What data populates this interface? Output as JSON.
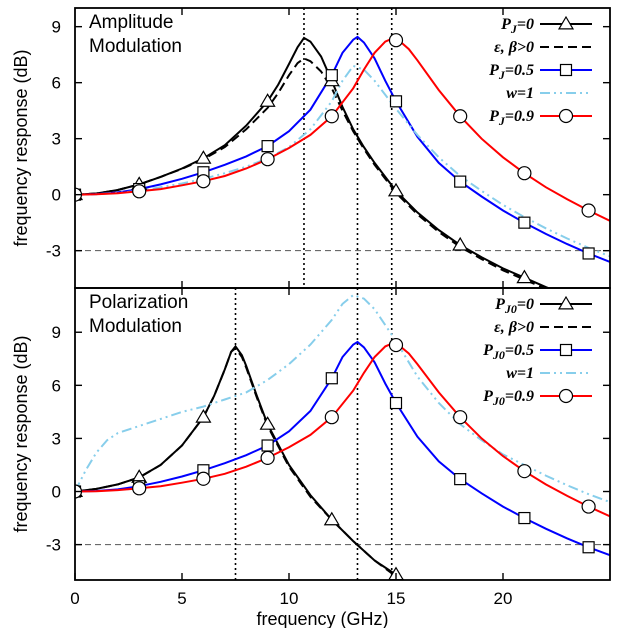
{
  "chart_data": [
    {
      "type": "line",
      "title_lines": [
        "Amplitude",
        "Modulation"
      ],
      "xlabel": "",
      "ylabel": "frequency response (dB)",
      "xlim": [
        0,
        25
      ],
      "ylim": [
        -5,
        10
      ],
      "yticks": [
        "-3",
        "0",
        "3",
        "6",
        "9"
      ],
      "xticks": [],
      "hline": -3,
      "vlines": [
        10.7,
        13.2,
        14.8
      ],
      "legend_position": "top-right",
      "legend": [
        {
          "label": "P_J=0",
          "sub": "J",
          "text": "P=0",
          "color": "#000000",
          "marker": "triangle",
          "dash": ""
        },
        {
          "label": "ε, β>0",
          "text": "ε, β>0",
          "color": "#000000",
          "marker": "",
          "dash": "9,5"
        },
        {
          "label": "P_J=0.5",
          "text": "P=0.5",
          "color": "#0000ff",
          "marker": "square",
          "dash": ""
        },
        {
          "label": "w=1",
          "text": "w=1",
          "color": "#87ceeb",
          "marker": "",
          "dash": "10,4,2,4,2,4"
        },
        {
          "label": "P_J=0.9",
          "text": "P=0.9",
          "color": "#ff0000",
          "marker": "circle",
          "dash": ""
        }
      ],
      "series": [
        {
          "name": "P_J=0",
          "color": "#000000",
          "marker": "triangle",
          "dash": "",
          "x": [
            0,
            1,
            2,
            3,
            4,
            5,
            6,
            7,
            8,
            9,
            9.5,
            10,
            10.4,
            10.7,
            11,
            11.5,
            12,
            12.5,
            13,
            13.5,
            14,
            15,
            16,
            17,
            18,
            19,
            20,
            21,
            22,
            23,
            24,
            25
          ],
          "y": [
            0,
            0.06,
            0.25,
            0.55,
            0.95,
            1.4,
            1.95,
            2.65,
            3.7,
            5.0,
            5.9,
            7.0,
            7.9,
            8.4,
            8.2,
            7.4,
            6.1,
            4.7,
            3.5,
            2.55,
            1.7,
            0.2,
            -0.95,
            -1.9,
            -2.7,
            -3.35,
            -3.95,
            -4.45,
            -4.95,
            -5.4,
            -5.8,
            -6.2
          ],
          "markers_x": [
            0,
            3,
            6,
            9,
            12,
            15,
            18,
            21
          ]
        },
        {
          "name": "ε, β>0",
          "color": "#000000",
          "marker": "",
          "dash": "9,5",
          "x": [
            0,
            1,
            2,
            3,
            4,
            5,
            6,
            7,
            8,
            9,
            9.5,
            10,
            10.4,
            10.7,
            11,
            11.5,
            12,
            12.5,
            13,
            13.5,
            14,
            15,
            16,
            17,
            18,
            19,
            20,
            21,
            22,
            23,
            24,
            25
          ],
          "y": [
            0,
            0.06,
            0.25,
            0.55,
            0.95,
            1.38,
            1.9,
            2.55,
            3.5,
            4.65,
            5.45,
            6.4,
            7.05,
            7.3,
            7.15,
            6.6,
            5.7,
            4.5,
            3.4,
            2.45,
            1.6,
            0.1,
            -1.05,
            -2.0,
            -2.8,
            -3.45,
            -4.05,
            -4.55,
            -5.05,
            -5.5,
            -5.9,
            -6.3
          ]
        },
        {
          "name": "P_J=0.5",
          "color": "#0000ff",
          "marker": "square",
          "dash": "",
          "x": [
            0,
            1,
            2,
            3,
            4,
            5,
            6,
            7,
            8,
            9,
            10,
            11,
            12,
            12.5,
            13,
            13.2,
            13.5,
            14,
            14.5,
            15,
            16,
            17,
            18,
            19,
            20,
            21,
            22,
            23,
            24,
            25
          ],
          "y": [
            0,
            0.03,
            0.12,
            0.3,
            0.55,
            0.85,
            1.2,
            1.6,
            2.05,
            2.6,
            3.4,
            4.55,
            6.4,
            7.6,
            8.3,
            8.45,
            8.15,
            7.3,
            6.1,
            5.0,
            3.1,
            1.7,
            0.7,
            -0.1,
            -0.85,
            -1.5,
            -2.1,
            -2.65,
            -3.15,
            -3.6
          ],
          "markers_x": [
            0,
            3,
            6,
            9,
            12,
            15,
            18,
            21,
            24
          ]
        },
        {
          "name": "w=1",
          "color": "#87ceeb",
          "marker": "",
          "dash": "10,4,2,4,2,4",
          "x": [
            0,
            1,
            2,
            3,
            4,
            5,
            6,
            7,
            8,
            9,
            10,
            11,
            12,
            12.5,
            13,
            13.5,
            14,
            15,
            16,
            17,
            18,
            19,
            20,
            21,
            22,
            23,
            24,
            25
          ],
          "y": [
            0,
            0.02,
            0.1,
            0.2,
            0.4,
            0.6,
            0.85,
            1.15,
            1.5,
            1.95,
            2.55,
            3.5,
            5.0,
            6.1,
            6.9,
            6.7,
            6.1,
            4.6,
            3.2,
            2.0,
            1.0,
            0.2,
            -0.55,
            -1.2,
            -1.8,
            -2.35,
            -2.85,
            -3.3
          ]
        },
        {
          "name": "P_J=0.9",
          "color": "#ff0000",
          "marker": "circle",
          "dash": "",
          "x": [
            0,
            1,
            2,
            3,
            4,
            5,
            6,
            7,
            8,
            9,
            10,
            11,
            12,
            13,
            13.5,
            14,
            14.5,
            14.8,
            15.2,
            15.6,
            16,
            17,
            18,
            19,
            20,
            21,
            22,
            23,
            24,
            25
          ],
          "y": [
            0,
            0.02,
            0.08,
            0.18,
            0.3,
            0.5,
            0.72,
            1.0,
            1.4,
            1.9,
            2.5,
            3.2,
            4.2,
            5.7,
            6.7,
            7.6,
            8.2,
            8.35,
            8.2,
            7.8,
            7.2,
            5.6,
            4.2,
            3.0,
            2.0,
            1.15,
            0.4,
            -0.25,
            -0.85,
            -1.4
          ],
          "markers_x": [
            0,
            3,
            6,
            9,
            12,
            15,
            18,
            21,
            24
          ]
        }
      ]
    },
    {
      "type": "line",
      "title_lines": [
        "Polarization",
        "Modulation"
      ],
      "xlabel": "frequency (GHz)",
      "ylabel": "frequency response (dB)",
      "xlim": [
        0,
        25
      ],
      "ylim": [
        -5,
        11.5
      ],
      "yticks": [
        "-3",
        "0",
        "3",
        "6",
        "9"
      ],
      "xticks": [
        "0",
        "5",
        "10",
        "15",
        "20"
      ],
      "hline": -3,
      "vlines": [
        7.5,
        13.2,
        14.8
      ],
      "legend_position": "top-right",
      "legend": [
        {
          "label": "P_J0=0",
          "text": "P=0",
          "color": "#000000",
          "marker": "triangle",
          "dash": ""
        },
        {
          "label": "ε, β>0",
          "text": "ε, β>0",
          "color": "#000000",
          "marker": "",
          "dash": "9,5"
        },
        {
          "label": "P_J0=0.5",
          "text": "P=0.5",
          "color": "#0000ff",
          "marker": "square",
          "dash": ""
        },
        {
          "label": "w=1",
          "text": "w=1",
          "color": "#87ceeb",
          "marker": "",
          "dash": "10,4,2,4,2,4"
        },
        {
          "label": "P_J0=0.9",
          "text": "P=0.9",
          "color": "#ff0000",
          "marker": "circle",
          "dash": ""
        }
      ],
      "series": [
        {
          "name": "ε, β>0",
          "color": "#000000",
          "marker": "",
          "dash": "9,5",
          "x": [
            0,
            1,
            2,
            3,
            4,
            5,
            6,
            6.5,
            7,
            7.3,
            7.5,
            7.8,
            8,
            8.5,
            9,
            10,
            11,
            12,
            13,
            14,
            15,
            16
          ],
          "y": [
            0,
            0.15,
            0.4,
            0.8,
            1.5,
            2.6,
            4.2,
            5.4,
            6.9,
            7.9,
            8.1,
            7.6,
            7.0,
            5.3,
            3.7,
            1.4,
            -0.3,
            -1.6,
            -2.8,
            -3.9,
            -4.8,
            -5.7
          ]
        },
        {
          "name": "P_J0=0",
          "color": "#000000",
          "marker": "triangle",
          "dash": "",
          "x": [
            0,
            1,
            2,
            3,
            4,
            5,
            6,
            6.5,
            7,
            7.3,
            7.5,
            7.8,
            8,
            8.5,
            9,
            10,
            11,
            12,
            13,
            14,
            15,
            16
          ],
          "y": [
            0,
            0.15,
            0.4,
            0.8,
            1.5,
            2.6,
            4.2,
            5.4,
            6.9,
            7.9,
            8.2,
            7.7,
            7.1,
            5.4,
            3.8,
            1.5,
            -0.2,
            -1.6,
            -2.8,
            -3.9,
            -4.7,
            -5.6
          ],
          "markers_x": [
            0,
            3,
            6,
            9,
            12,
            15
          ]
        },
        {
          "name": "P_J0=0.5",
          "color": "#0000ff",
          "marker": "square",
          "dash": "",
          "x": [
            0,
            1,
            2,
            3,
            4,
            5,
            6,
            7,
            8,
            9,
            10,
            11,
            12,
            12.5,
            13,
            13.2,
            13.5,
            14,
            14.5,
            15,
            16,
            17,
            18,
            19,
            20,
            21,
            22,
            23,
            24,
            25
          ],
          "y": [
            0,
            0.03,
            0.12,
            0.3,
            0.55,
            0.85,
            1.2,
            1.6,
            2.05,
            2.6,
            3.4,
            4.55,
            6.4,
            7.6,
            8.3,
            8.45,
            8.15,
            7.3,
            6.1,
            5.0,
            3.1,
            1.7,
            0.7,
            -0.1,
            -0.85,
            -1.5,
            -2.1,
            -2.65,
            -3.15,
            -3.6
          ],
          "markers_x": [
            0,
            3,
            6,
            9,
            12,
            15,
            18,
            21,
            24
          ]
        },
        {
          "name": "w=1",
          "color": "#87ceeb",
          "marker": "",
          "dash": "10,4,2,4,2,4",
          "x": [
            0,
            0.5,
            1,
            1.5,
            2,
            3,
            4,
            5,
            6,
            7,
            8,
            9,
            10,
            11,
            12,
            12.5,
            13,
            13.5,
            14,
            15,
            16,
            17,
            18,
            19,
            20,
            21,
            22,
            23,
            24,
            25
          ],
          "y": [
            0,
            1.2,
            2.2,
            2.9,
            3.3,
            3.7,
            4.1,
            4.5,
            4.8,
            5.2,
            5.6,
            6.3,
            7.2,
            8.3,
            9.7,
            10.6,
            11.1,
            10.9,
            10.3,
            8.5,
            6.5,
            5.0,
            3.8,
            2.9,
            2.1,
            1.5,
            0.9,
            0.35,
            -0.15,
            -0.6
          ]
        },
        {
          "name": "P_J0=0.9",
          "color": "#ff0000",
          "marker": "circle",
          "dash": "",
          "x": [
            0,
            1,
            2,
            3,
            4,
            5,
            6,
            7,
            8,
            9,
            10,
            11,
            12,
            13,
            13.5,
            14,
            14.5,
            14.8,
            15.2,
            15.6,
            16,
            17,
            18,
            19,
            20,
            21,
            22,
            23,
            24,
            25
          ],
          "y": [
            0,
            0.02,
            0.08,
            0.18,
            0.3,
            0.5,
            0.72,
            1.0,
            1.4,
            1.9,
            2.5,
            3.2,
            4.2,
            5.7,
            6.7,
            7.6,
            8.2,
            8.35,
            8.2,
            7.8,
            7.2,
            5.6,
            4.2,
            3.0,
            2.0,
            1.15,
            0.4,
            -0.25,
            -0.85,
            -1.4
          ],
          "markers_x": [
            0,
            3,
            6,
            9,
            12,
            15,
            18,
            21,
            24
          ]
        }
      ]
    }
  ]
}
